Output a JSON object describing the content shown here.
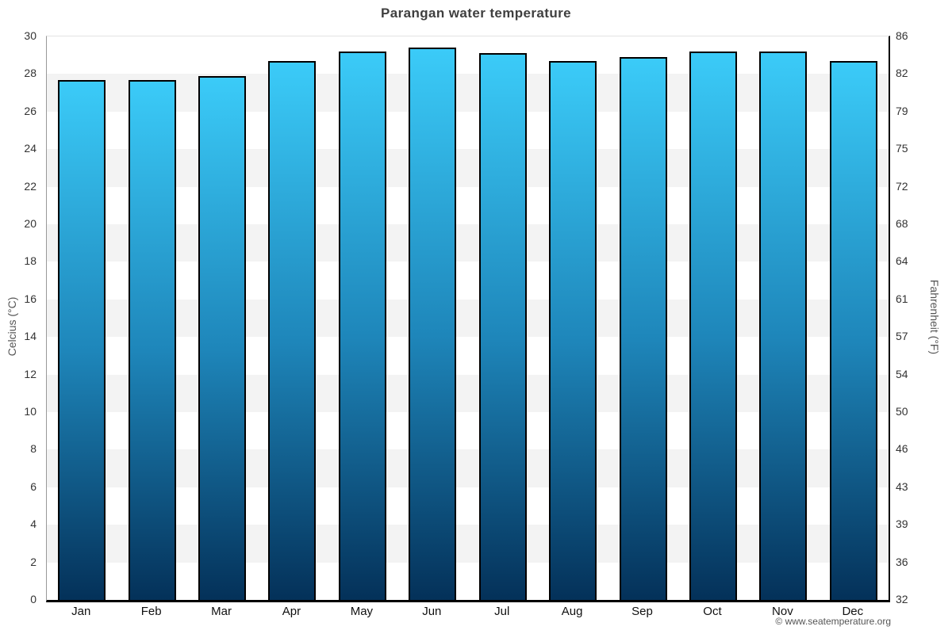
{
  "title": "Parangan water temperature",
  "footer": {
    "copyright": "© www.seatemperature.org"
  },
  "chart_data": {
    "type": "bar",
    "title": "Parangan water temperature",
    "categories": [
      "Jan",
      "Feb",
      "Mar",
      "Apr",
      "May",
      "Jun",
      "Jul",
      "Aug",
      "Sep",
      "Oct",
      "Nov",
      "Dec"
    ],
    "series": [
      {
        "name": "Water temperature",
        "unit": "°C",
        "values": [
          27.7,
          27.7,
          27.9,
          28.7,
          29.2,
          29.4,
          29.1,
          28.7,
          28.9,
          29.2,
          29.2,
          28.7
        ]
      }
    ],
    "xlabel": "",
    "ylabel_left": "Celcius (°C)",
    "ylabel_right": "Fahrenheit (°F)",
    "ylim_c": [
      0,
      30
    ],
    "yticks_c": [
      0,
      2,
      4,
      6,
      8,
      10,
      12,
      14,
      16,
      18,
      20,
      22,
      24,
      26,
      28,
      30
    ],
    "yticks_f_labels": [
      "32",
      "36",
      "39",
      "43",
      "46",
      "50",
      "54",
      "57",
      "61",
      "64",
      "68",
      "72",
      "75",
      "79",
      "82",
      "86"
    ],
    "legend": "none",
    "grid": "alternating-horizontal-bands",
    "colors": {
      "bar_gradient_top": "#3bcbf8",
      "bar_gradient_mid": "#1e86ba",
      "bar_gradient_bottom": "#043159",
      "bar_border": "#000000",
      "band_gray": "#f3f3f3",
      "axis_line_left": "#999999",
      "axis_line_right": "#000000",
      "title_text": "#3f3f3f",
      "tick_text": "#333333",
      "footer_text": "#555555"
    }
  }
}
